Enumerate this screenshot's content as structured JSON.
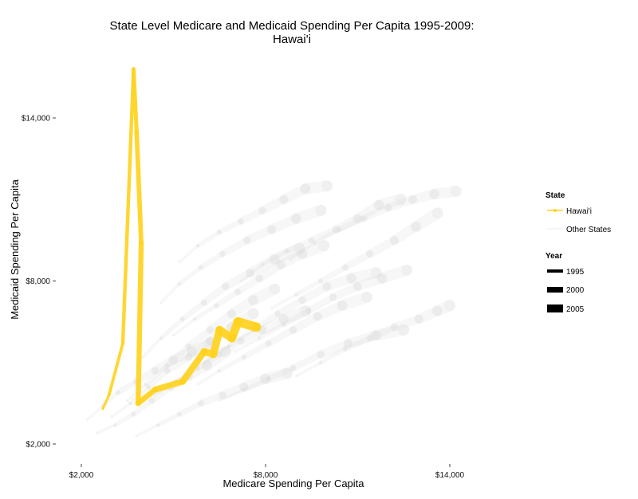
{
  "chart_data": {
    "type": "line",
    "title": "State Level Medicare and Medicaid Spending Per Capita 1995-2009:",
    "subtitle": "Hawai'i",
    "xlabel": "Medicare Spending Per Capita",
    "ylabel": "Medicaid Spending Per Capita",
    "xlim": [
      1000,
      16000
    ],
    "ylim": [
      1500,
      16000
    ],
    "x_ticks": [
      2000,
      8000,
      14000
    ],
    "x_tick_labels": [
      "$2,000",
      "$8,000",
      "$14,000"
    ],
    "y_ticks": [
      2000,
      8000,
      14000
    ],
    "y_tick_labels": [
      "$2,000",
      "$8,000",
      "$14,000"
    ],
    "grid": false,
    "legend_position": "right",
    "highlight_color": "#FFD21F",
    "other_color": "#D9D9D9",
    "legend": {
      "state_title": "State",
      "state_items": [
        "Hawai'i",
        "Other States"
      ],
      "year_title": "Year",
      "year_items": [
        "1995",
        "2000",
        "2005"
      ]
    },
    "highlight_series": {
      "name": "Hawai'i",
      "points": [
        {
          "year": 1995,
          "x": 2700,
          "y": 3300
        },
        {
          "year": 1996,
          "x": 2900,
          "y": 3800
        },
        {
          "year": 1997,
          "x": 3350,
          "y": 5700
        },
        {
          "year": 1998,
          "x": 3700,
          "y": 15800
        },
        {
          "year": 1999,
          "x": 3800,
          "y": 13500
        },
        {
          "year": 2000,
          "x": 3950,
          "y": 9400
        },
        {
          "year": 2001,
          "x": 3850,
          "y": 3500
        },
        {
          "year": 2002,
          "x": 4400,
          "y": 4000
        },
        {
          "year": 2003,
          "x": 5300,
          "y": 4300
        },
        {
          "year": 2004,
          "x": 6000,
          "y": 5400
        },
        {
          "year": 2005,
          "x": 6300,
          "y": 5300
        },
        {
          "year": 2006,
          "x": 6500,
          "y": 6200
        },
        {
          "year": 2007,
          "x": 6900,
          "y": 5900
        },
        {
          "year": 2008,
          "x": 7100,
          "y": 6500
        },
        {
          "year": 2009,
          "x": 7700,
          "y": 6300
        }
      ]
    },
    "other_series": [
      {
        "points": [
          {
            "x": 2500,
            "y": 2400
          },
          {
            "x": 3100,
            "y": 2700
          },
          {
            "x": 3700,
            "y": 3100
          },
          {
            "x": 4300,
            "y": 3600
          },
          {
            "x": 4900,
            "y": 4100
          },
          {
            "x": 5500,
            "y": 4500
          },
          {
            "x": 6100,
            "y": 4900
          },
          {
            "x": 6700,
            "y": 5400
          }
        ]
      },
      {
        "points": [
          {
            "x": 3000,
            "y": 3000
          },
          {
            "x": 3600,
            "y": 3500
          },
          {
            "x": 4200,
            "y": 4100
          },
          {
            "x": 4800,
            "y": 4700
          },
          {
            "x": 5500,
            "y": 5200
          },
          {
            "x": 6200,
            "y": 5800
          },
          {
            "x": 6900,
            "y": 6300
          },
          {
            "x": 7600,
            "y": 6800
          }
        ]
      },
      {
        "points": [
          {
            "x": 3500,
            "y": 3600
          },
          {
            "x": 4100,
            "y": 4200
          },
          {
            "x": 4800,
            "y": 4900
          },
          {
            "x": 5500,
            "y": 5600
          },
          {
            "x": 6200,
            "y": 6200
          },
          {
            "x": 6900,
            "y": 6800
          },
          {
            "x": 7600,
            "y": 7300
          },
          {
            "x": 8300,
            "y": 7700
          }
        ]
      },
      {
        "points": [
          {
            "x": 4000,
            "y": 5200
          },
          {
            "x": 4600,
            "y": 5900
          },
          {
            "x": 5300,
            "y": 6600
          },
          {
            "x": 6000,
            "y": 7200
          },
          {
            "x": 6700,
            "y": 7800
          },
          {
            "x": 7500,
            "y": 8300
          },
          {
            "x": 8300,
            "y": 8800
          },
          {
            "x": 9100,
            "y": 9200
          }
        ]
      },
      {
        "points": [
          {
            "x": 4600,
            "y": 7200
          },
          {
            "x": 5200,
            "y": 7900
          },
          {
            "x": 5900,
            "y": 8500
          },
          {
            "x": 6600,
            "y": 9000
          },
          {
            "x": 7400,
            "y": 9500
          },
          {
            "x": 8200,
            "y": 9900
          },
          {
            "x": 9000,
            "y": 10300
          },
          {
            "x": 9800,
            "y": 10600
          }
        ]
      },
      {
        "points": [
          {
            "x": 5200,
            "y": 8700
          },
          {
            "x": 5800,
            "y": 9300
          },
          {
            "x": 6500,
            "y": 9800
          },
          {
            "x": 7200,
            "y": 10200
          },
          {
            "x": 7900,
            "y": 10600
          },
          {
            "x": 8600,
            "y": 11000
          },
          {
            "x": 9300,
            "y": 11400
          },
          {
            "x": 10000,
            "y": 11500
          }
        ]
      },
      {
        "points": [
          {
            "x": 7200,
            "y": 8000
          },
          {
            "x": 7900,
            "y": 8600
          },
          {
            "x": 8700,
            "y": 9100
          },
          {
            "x": 9500,
            "y": 9500
          },
          {
            "x": 10300,
            "y": 9900
          },
          {
            "x": 11000,
            "y": 10300
          },
          {
            "x": 11700,
            "y": 10800
          },
          {
            "x": 12400,
            "y": 11000
          }
        ]
      },
      {
        "points": [
          {
            "x": 5800,
            "y": 4200
          },
          {
            "x": 6500,
            "y": 4700
          },
          {
            "x": 7300,
            "y": 5200
          },
          {
            "x": 8100,
            "y": 5700
          },
          {
            "x": 8900,
            "y": 6200
          },
          {
            "x": 9700,
            "y": 6700
          },
          {
            "x": 10500,
            "y": 7100
          },
          {
            "x": 11300,
            "y": 7400
          }
        ]
      },
      {
        "points": [
          {
            "x": 6500,
            "y": 3600
          },
          {
            "x": 7300,
            "y": 4000
          },
          {
            "x": 8100,
            "y": 4400
          },
          {
            "x": 8900,
            "y": 4800
          },
          {
            "x": 9800,
            "y": 5300
          },
          {
            "x": 10700,
            "y": 5700
          },
          {
            "x": 11600,
            "y": 6000
          },
          {
            "x": 12500,
            "y": 6200
          }
        ]
      },
      {
        "points": [
          {
            "x": 7000,
            "y": 5400
          },
          {
            "x": 7800,
            "y": 5900
          },
          {
            "x": 8600,
            "y": 6400
          },
          {
            "x": 9400,
            "y": 6900
          },
          {
            "x": 10200,
            "y": 7400
          },
          {
            "x": 11000,
            "y": 7800
          },
          {
            "x": 11800,
            "y": 8100
          },
          {
            "x": 12600,
            "y": 8400
          }
        ]
      },
      {
        "points": [
          {
            "x": 5000,
            "y": 6000
          },
          {
            "x": 5700,
            "y": 6600
          },
          {
            "x": 6400,
            "y": 7100
          },
          {
            "x": 7100,
            "y": 7600
          },
          {
            "x": 7800,
            "y": 8100
          },
          {
            "x": 8500,
            "y": 8600
          },
          {
            "x": 9200,
            "y": 9000
          },
          {
            "x": 9900,
            "y": 9300
          }
        ]
      },
      {
        "points": [
          {
            "x": 4400,
            "y": 3800
          },
          {
            "x": 5100,
            "y": 4300
          },
          {
            "x": 5800,
            "y": 4800
          },
          {
            "x": 6500,
            "y": 5300
          },
          {
            "x": 7200,
            "y": 5800
          },
          {
            "x": 7900,
            "y": 6200
          },
          {
            "x": 8600,
            "y": 6600
          },
          {
            "x": 9300,
            "y": 6900
          }
        ]
      },
      {
        "points": [
          {
            "x": 8200,
            "y": 7000
          },
          {
            "x": 9000,
            "y": 7500
          },
          {
            "x": 9800,
            "y": 8000
          },
          {
            "x": 10600,
            "y": 8500
          },
          {
            "x": 11400,
            "y": 9000
          },
          {
            "x": 12200,
            "y": 9500
          },
          {
            "x": 12900,
            "y": 10000
          },
          {
            "x": 13600,
            "y": 10500
          }
        ]
      },
      {
        "points": [
          {
            "x": 2200,
            "y": 2900
          },
          {
            "x": 2700,
            "y": 3400
          },
          {
            "x": 3200,
            "y": 3900
          },
          {
            "x": 3800,
            "y": 4300
          },
          {
            "x": 4400,
            "y": 4700
          },
          {
            "x": 5000,
            "y": 5100
          },
          {
            "x": 5600,
            "y": 5400
          },
          {
            "x": 6200,
            "y": 5700
          }
        ]
      },
      {
        "points": [
          {
            "x": 3800,
            "y": 2300
          },
          {
            "x": 4500,
            "y": 2700
          },
          {
            "x": 5200,
            "y": 3100
          },
          {
            "x": 5900,
            "y": 3500
          },
          {
            "x": 6600,
            "y": 3800
          },
          {
            "x": 7300,
            "y": 4100
          },
          {
            "x": 8000,
            "y": 4400
          },
          {
            "x": 8700,
            "y": 4600
          }
        ]
      },
      {
        "points": [
          {
            "x": 6000,
            "y": 5000
          },
          {
            "x": 6800,
            "y": 5600
          },
          {
            "x": 7600,
            "y": 6200
          },
          {
            "x": 8400,
            "y": 6800
          },
          {
            "x": 9200,
            "y": 7300
          },
          {
            "x": 10000,
            "y": 7800
          },
          {
            "x": 10800,
            "y": 8100
          },
          {
            "x": 11600,
            "y": 8300
          }
        ]
      },
      {
        "points": [
          {
            "x": 9000,
            "y": 4500
          },
          {
            "x": 9800,
            "y": 5000
          },
          {
            "x": 10600,
            "y": 5500
          },
          {
            "x": 11400,
            "y": 5900
          },
          {
            "x": 12200,
            "y": 6300
          },
          {
            "x": 13000,
            "y": 6600
          },
          {
            "x": 13600,
            "y": 6900
          },
          {
            "x": 14000,
            "y": 7100
          }
        ]
      },
      {
        "points": [
          {
            "x": 8800,
            "y": 8800
          },
          {
            "x": 9600,
            "y": 9400
          },
          {
            "x": 10400,
            "y": 9900
          },
          {
            "x": 11200,
            "y": 10300
          },
          {
            "x": 12000,
            "y": 10700
          },
          {
            "x": 12800,
            "y": 11000
          },
          {
            "x": 13500,
            "y": 11200
          },
          {
            "x": 14200,
            "y": 11300
          }
        ]
      }
    ]
  }
}
